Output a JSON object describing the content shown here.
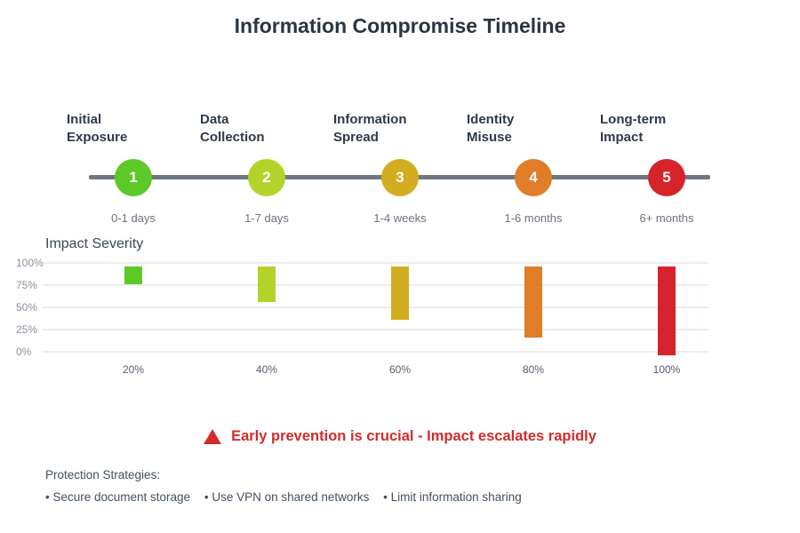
{
  "title": "Information Compromise Timeline",
  "timeline": {
    "line_color": "#6e7680",
    "stages": [
      {
        "number": "1",
        "line1": "Initial",
        "line2": "Exposure",
        "duration": "0-1 days",
        "color": "#5cc926"
      },
      {
        "number": "2",
        "line1": "Data",
        "line2": "Collection",
        "duration": "1-7 days",
        "color": "#b4d32a"
      },
      {
        "number": "3",
        "line1": "Information",
        "line2": "Spread",
        "duration": "1-4 weeks",
        "color": "#d2ad1f"
      },
      {
        "number": "4",
        "line1": "Identity",
        "line2": "Misuse",
        "duration": "1-6 months",
        "color": "#e07d28"
      },
      {
        "number": "5",
        "line1": "Long-term",
        "line2": "Impact",
        "duration": "6+ months",
        "color": "#d6232b"
      }
    ]
  },
  "chart": {
    "title": "Impact Severity",
    "y_ticks": [
      "100%",
      "75%",
      "50%",
      "25%",
      "0%"
    ],
    "x_ticks": [
      "20%",
      "40%",
      "60%",
      "80%",
      "100%"
    ]
  },
  "chart_data": {
    "type": "bar",
    "title": "Impact Severity",
    "categories": [
      "20%",
      "40%",
      "60%",
      "80%",
      "100%"
    ],
    "values": [
      20,
      40,
      60,
      80,
      100
    ],
    "ylim": [
      0,
      100
    ],
    "y_tick_labels": [
      "0%",
      "25%",
      "50%",
      "75%",
      "100%"
    ],
    "bar_colors": [
      "#5cc926",
      "#b4d32a",
      "#d2ad1f",
      "#e07d28",
      "#d6232b"
    ],
    "orientation": "bars hang downward from the 100% line",
    "grid": true,
    "legend": false
  },
  "warning": {
    "icon": "warning-triangle-icon",
    "text": "Early prevention is crucial - Impact escalates rapidly",
    "color": "#d32b2b"
  },
  "protection": {
    "title": "Protection Strategies:",
    "items": [
      "• Secure document storage",
      "• Use VPN on shared networks",
      "• Limit information sharing"
    ]
  }
}
